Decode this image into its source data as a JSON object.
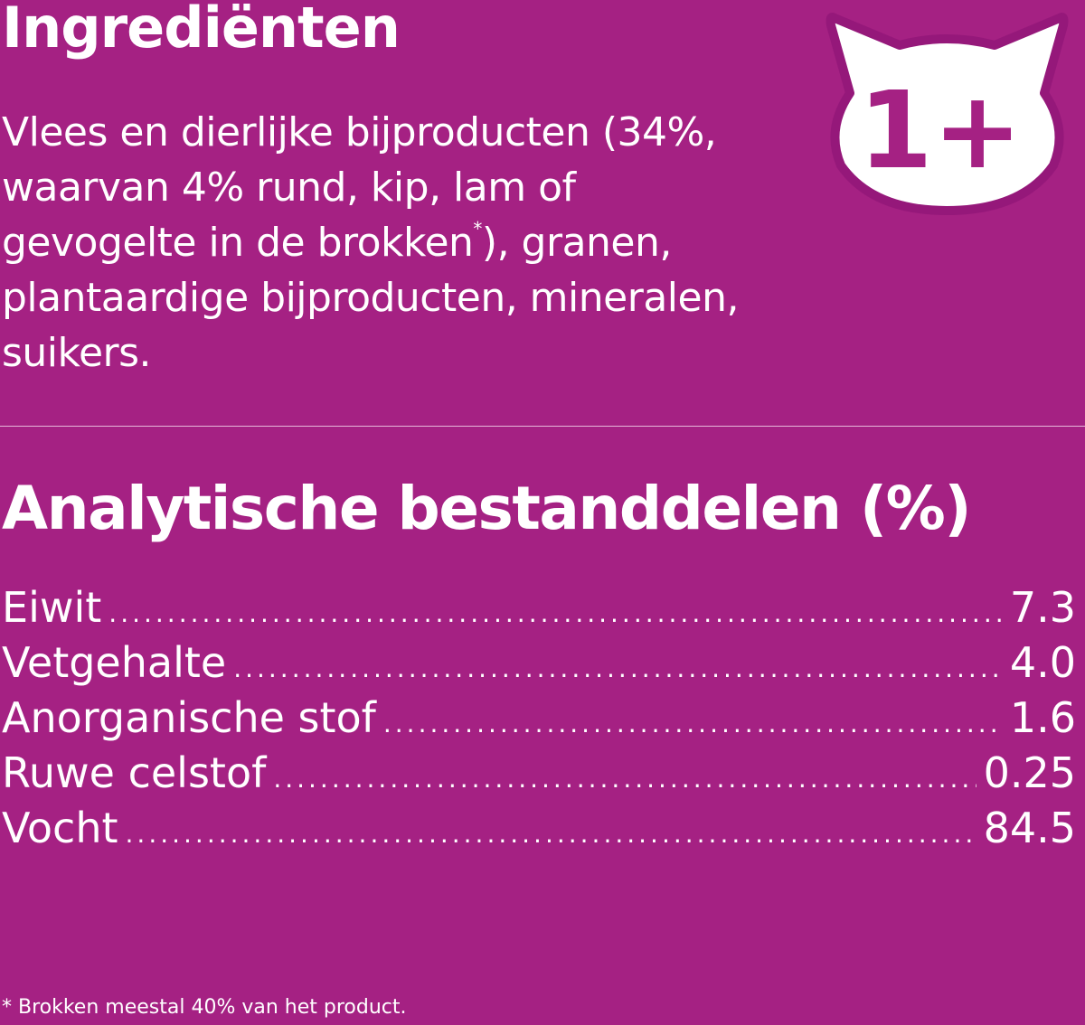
{
  "ingredients": {
    "title": "Ingrediënten",
    "text_before_mark": "Vlees en dierlijke bijproducten (34%, waarvan 4% rund, kip, lam of gevogelte in de brokken",
    "mark": "*",
    "text_after_mark": "), granen, plantaardige bijproducten, mineralen, suikers."
  },
  "badge": {
    "label": "1+",
    "icon": "cat-head-icon",
    "fill": "#ffffff",
    "text_color": "#a52183"
  },
  "analysis": {
    "title": "Analytische bestanddelen (%)",
    "rows": [
      {
        "label": "Eiwit",
        "value": "7.3"
      },
      {
        "label": "Vetgehalte",
        "value": "4.0"
      },
      {
        "label": "Anorganische stof",
        "value": "1.6"
      },
      {
        "label": "Ruwe celstof",
        "value": "0.25"
      },
      {
        "label": "Vocht",
        "value": "84.5"
      }
    ]
  },
  "footnote": "* Brokken meestal 40% van het product.",
  "colors": {
    "background": "#a52183",
    "text": "#ffffff"
  }
}
